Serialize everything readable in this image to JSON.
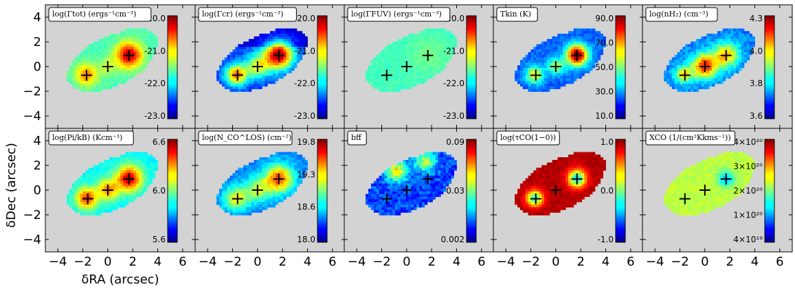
{
  "figure": {
    "xlabel": "δRA (arcsec)",
    "ylabel": "δDec (arcsec)",
    "xticks": [
      "−4",
      "−2",
      "0",
      "2",
      "4",
      "6"
    ],
    "yticks": [
      "4",
      "2",
      "0",
      "−2",
      "−4"
    ],
    "background_color": "#d3d3d3"
  },
  "chart_data": [
    {
      "type": "heatmap",
      "title": "log(Γtot) (ergs⁻¹cm⁻³)",
      "xlim": [
        -5,
        7
      ],
      "ylim": [
        -5,
        5
      ],
      "colorbar": {
        "ticks": [
          "-20.0",
          "-21.0",
          "-22.0",
          "-23.0"
        ],
        "range": [
          -23,
          -20
        ]
      },
      "markers": [
        [
          -1.7,
          -0.7
        ],
        [
          0,
          0
        ],
        [
          1.7,
          0.9
        ]
      ]
    },
    {
      "type": "heatmap",
      "title": "log(Γcr) (ergs⁻¹cm⁻³)",
      "xlim": [
        -5,
        7
      ],
      "ylim": [
        -5,
        5
      ],
      "colorbar": {
        "ticks": [
          "-20.0",
          "-21.0",
          "-22.0",
          "-23.0"
        ],
        "range": [
          -23,
          -20
        ]
      },
      "markers": [
        [
          -1.6,
          -0.7
        ],
        [
          0,
          0
        ],
        [
          1.7,
          0.9
        ]
      ]
    },
    {
      "type": "heatmap",
      "title": "log(ΓFUV) (ergs⁻¹cm⁻³)",
      "xlim": [
        -5,
        7
      ],
      "ylim": [
        -5,
        5
      ],
      "colorbar": {
        "ticks": [
          "-20.0",
          "-21.0",
          "-22.0",
          "-23.0"
        ],
        "range": [
          -23,
          -20
        ]
      },
      "markers": [
        [
          -1.6,
          -0.7
        ],
        [
          0,
          0
        ],
        [
          1.7,
          0.9
        ]
      ]
    },
    {
      "type": "heatmap",
      "title": "Tkin (K)",
      "xlim": [
        -5,
        7
      ],
      "ylim": [
        -5,
        5
      ],
      "colorbar": {
        "ticks": [
          "90.0",
          "70.0",
          "50.0",
          "30.0",
          "10.0"
        ],
        "range": [
          10,
          90
        ]
      },
      "markers": [
        [
          -1.6,
          -0.7
        ],
        [
          0,
          0
        ],
        [
          1.7,
          0.9
        ]
      ]
    },
    {
      "type": "heatmap",
      "title": "log(nH₂) (cm⁻³)",
      "xlim": [
        -5,
        7
      ],
      "ylim": [
        -5,
        5
      ],
      "colorbar": {
        "ticks": [
          "4.3",
          "4.0",
          "3.8",
          "3.6"
        ],
        "range": [
          3.6,
          4.3
        ]
      },
      "markers": [
        [
          -1.6,
          -0.7
        ],
        [
          0,
          0
        ],
        [
          1.7,
          0.9
        ]
      ]
    },
    {
      "type": "heatmap",
      "title": "log(Pi/kB) (Kcm⁻³)",
      "xlim": [
        -5,
        7
      ],
      "ylim": [
        -5,
        5
      ],
      "colorbar": {
        "ticks": [
          "6.6",
          "6.0",
          "5.6"
        ],
        "range": [
          5.4,
          6.8
        ]
      },
      "markers": [
        [
          -1.6,
          -0.7
        ],
        [
          0,
          0
        ],
        [
          1.7,
          0.9
        ]
      ]
    },
    {
      "type": "heatmap",
      "title": "log(N_CO^LOS) (cm⁻²)",
      "xlim": [
        -5,
        7
      ],
      "ylim": [
        -5,
        5
      ],
      "colorbar": {
        "ticks": [
          "19.8",
          "19.3",
          "18.6",
          "18.0"
        ],
        "range": [
          18,
          19.8
        ]
      },
      "markers": [
        [
          -1.6,
          -0.7
        ],
        [
          0,
          0
        ],
        [
          1.7,
          0.9
        ]
      ]
    },
    {
      "type": "heatmap",
      "title": "bff",
      "xlim": [
        -5,
        7
      ],
      "ylim": [
        -5,
        5
      ],
      "colorbar": {
        "ticks": [
          "0.09",
          "0.03",
          "0.002"
        ],
        "range": [
          0.002,
          0.09
        ]
      },
      "markers": [
        [
          -1.6,
          -0.7
        ],
        [
          0,
          0
        ],
        [
          1.7,
          0.9
        ]
      ]
    },
    {
      "type": "heatmap",
      "title": "log(τCO(1−0))",
      "xlim": [
        -5,
        7
      ],
      "ylim": [
        -5,
        5
      ],
      "colorbar": {
        "ticks": [
          "1.0",
          "0.0",
          "-1.0"
        ],
        "range": [
          -1,
          1
        ]
      },
      "markers": [
        [
          -1.6,
          -0.7
        ],
        [
          0,
          0
        ],
        [
          1.7,
          0.9
        ]
      ]
    },
    {
      "type": "heatmap",
      "title": "XCO (1/(cm²Kkms⁻¹))",
      "xlim": [
        -5,
        7
      ],
      "ylim": [
        -5,
        5
      ],
      "colorbar": {
        "ticks": [
          "4×10²⁰",
          "3×10²⁰",
          "2×10²⁰",
          "1×10²⁰",
          "4×10¹⁹"
        ],
        "range": [
          4e+19,
          4e+20
        ]
      },
      "markers": [
        [
          -1.6,
          -0.7
        ],
        [
          0,
          0
        ],
        [
          1.7,
          0.9
        ]
      ]
    }
  ]
}
